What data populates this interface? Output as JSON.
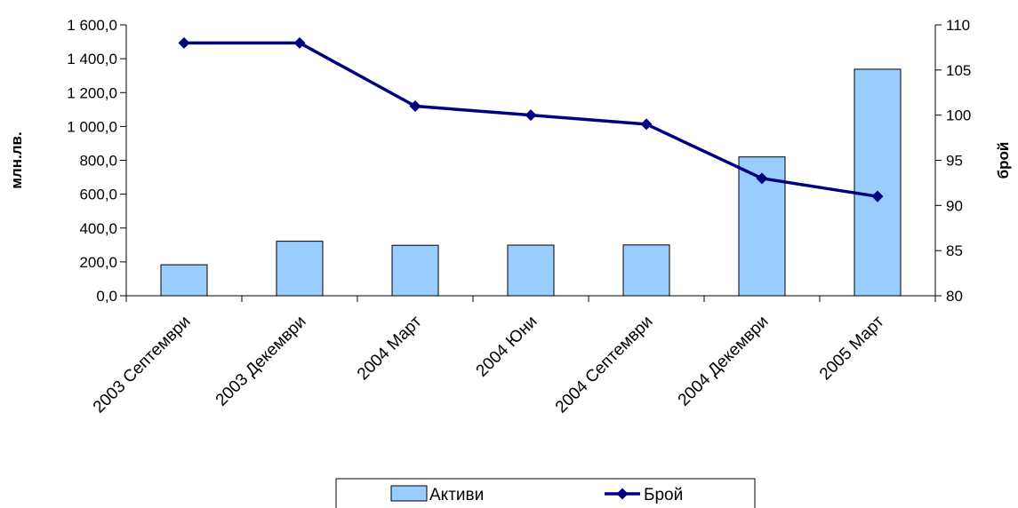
{
  "chart_data": {
    "type": "bar+line",
    "categories": [
      "2003 Септември",
      "2003 Декември",
      "2004 Март",
      "2004  Юни",
      "2004 Септември",
      "2004 Декември",
      "2005 Март"
    ],
    "series": [
      {
        "name": "Активи",
        "type": "bar",
        "axis": "left",
        "color": "#99ccff",
        "values": [
          183,
          322,
          298,
          299,
          300,
          820,
          1338
        ]
      },
      {
        "name": "Брой",
        "type": "line",
        "axis": "right",
        "color": "#000080",
        "values": [
          108,
          108,
          101,
          100,
          99,
          93,
          91
        ]
      }
    ],
    "y_left": {
      "label": "млн.лв.",
      "ylim": [
        0,
        1600
      ],
      "ticks": [
        "0,0",
        "200,0",
        "400,0",
        "600,0",
        "800,0",
        "1 000,0",
        "1 200,0",
        "1 400,0",
        "1 600,0"
      ]
    },
    "y_right": {
      "label": "брой",
      "ylim": [
        80,
        110
      ],
      "ticks": [
        "80",
        "85",
        "90",
        "95",
        "100",
        "105",
        "110"
      ]
    },
    "grid": false,
    "legend": "bottom"
  }
}
